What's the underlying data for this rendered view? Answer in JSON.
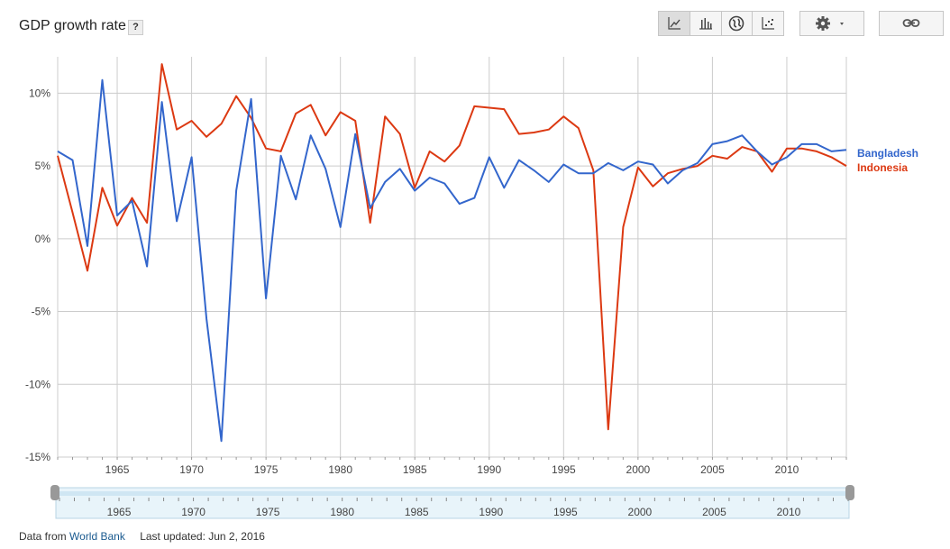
{
  "header": {
    "title": "GDP growth rate",
    "help_label": "?"
  },
  "toolbar": {
    "chart_types": [
      {
        "icon": "line-chart-icon",
        "active": true
      },
      {
        "icon": "bar-chart-icon",
        "active": false
      },
      {
        "icon": "globe-icon",
        "active": false
      },
      {
        "icon": "scatter-chart-icon",
        "active": false
      }
    ],
    "settings_icon": "gear-icon",
    "link_icon": "link-icon"
  },
  "footer": {
    "data_from": "Data from",
    "source": "World Bank",
    "last_updated": "Last updated: Jun 2, 2016"
  },
  "colors": {
    "bangladesh": "#3366cc",
    "indonesia": "#dc3912",
    "grid": "#cccccc",
    "slider_track": "#e8f4fa"
  },
  "chart_data": {
    "type": "line",
    "x": [
      1961,
      1962,
      1963,
      1964,
      1965,
      1966,
      1967,
      1968,
      1969,
      1970,
      1971,
      1972,
      1973,
      1974,
      1975,
      1976,
      1977,
      1978,
      1979,
      1980,
      1981,
      1982,
      1983,
      1984,
      1985,
      1986,
      1987,
      1988,
      1989,
      1990,
      1991,
      1992,
      1993,
      1994,
      1995,
      1996,
      1997,
      1998,
      1999,
      2000,
      2001,
      2002,
      2003,
      2004,
      2005,
      2006,
      2007,
      2008,
      2009,
      2010,
      2011,
      2012,
      2013,
      2014
    ],
    "series": [
      {
        "name": "Bangladesh",
        "values": [
          6.0,
          5.4,
          -0.5,
          10.9,
          1.6,
          2.6,
          -1.9,
          9.4,
          1.2,
          5.6,
          -5.5,
          -13.9,
          3.3,
          9.6,
          -4.1,
          5.7,
          2.7,
          7.1,
          4.8,
          0.8,
          7.2,
          2.1,
          3.9,
          4.8,
          3.3,
          4.2,
          3.8,
          2.4,
          2.8,
          5.6,
          3.5,
          5.4,
          4.7,
          3.9,
          5.1,
          4.5,
          4.5,
          5.2,
          4.7,
          5.3,
          5.1,
          3.8,
          4.7,
          5.2,
          6.5,
          6.7,
          7.1,
          6.0,
          5.1,
          5.6,
          6.5,
          6.5,
          6.0,
          6.1
        ]
      },
      {
        "name": "Indonesia",
        "values": [
          5.7,
          1.8,
          -2.2,
          3.5,
          0.9,
          2.8,
          1.1,
          12.0,
          7.5,
          8.1,
          7.0,
          7.9,
          9.8,
          8.3,
          6.2,
          6.0,
          8.6,
          9.2,
          7.1,
          8.7,
          8.1,
          1.1,
          8.4,
          7.2,
          3.5,
          6.0,
          5.3,
          6.4,
          9.1,
          9.0,
          8.9,
          7.2,
          7.3,
          7.5,
          8.4,
          7.6,
          4.7,
          -13.1,
          0.8,
          4.9,
          3.6,
          4.5,
          4.8,
          5.0,
          5.7,
          5.5,
          6.3,
          6.0,
          4.6,
          6.2,
          6.2,
          6.0,
          5.6,
          5.0
        ]
      }
    ],
    "ylim": [
      -15,
      12.5
    ],
    "yticks": [
      10,
      5,
      0,
      -5,
      -10,
      -15
    ],
    "ytick_labels": [
      "10%",
      "5%",
      "0%",
      "-5%",
      "-10%",
      "-15%"
    ],
    "xticks": [
      1965,
      1970,
      1975,
      1980,
      1985,
      1990,
      1995,
      2000,
      2005,
      2010
    ],
    "xlim": [
      1961,
      2014
    ],
    "grid": true,
    "legend_placement": "right, at line ends"
  }
}
